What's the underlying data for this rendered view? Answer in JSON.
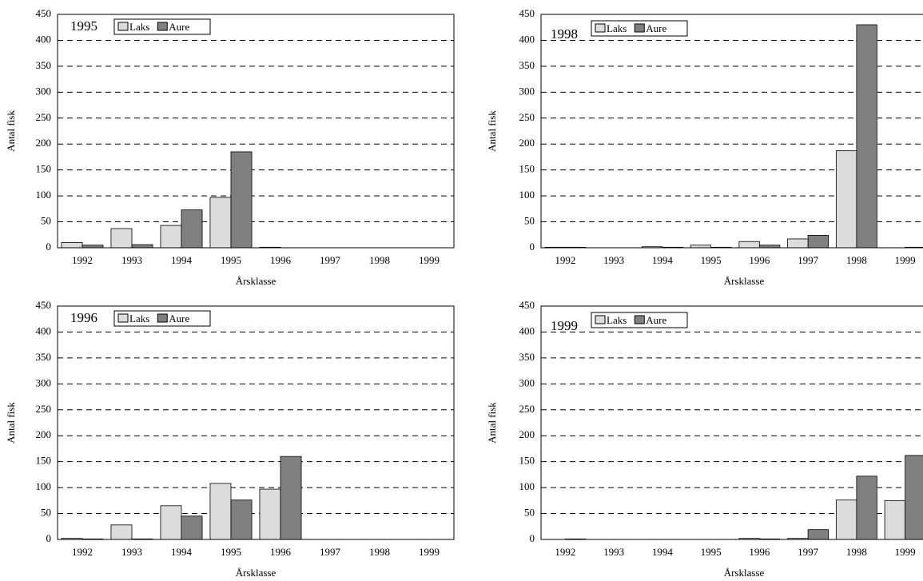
{
  "chart_data": [
    {
      "type": "bar",
      "annotation": "1995",
      "x_label": "Årsklasse",
      "y_label": "Antal fisk",
      "categories": [
        "1992",
        "1993",
        "1994",
        "1995",
        "1996",
        "1997",
        "1998",
        "1999"
      ],
      "series": [
        {
          "name": "Laks",
          "color": "#dcdcdc",
          "values": [
            10,
            37,
            43,
            97,
            1,
            0,
            0,
            0
          ]
        },
        {
          "name": "Aure",
          "color": "#808080",
          "values": [
            5,
            6,
            73,
            185,
            0,
            0,
            0,
            0
          ]
        }
      ],
      "ylim": [
        0,
        450
      ],
      "yticks": [
        0,
        50,
        100,
        150,
        200,
        250,
        300,
        350,
        400,
        450
      ],
      "grid": true,
      "legend": "top-left"
    },
    {
      "type": "bar",
      "annotation": "1998",
      "x_label": "Årsklasse",
      "y_label": "Antal fisk",
      "categories": [
        "1992",
        "1993",
        "1994",
        "1995",
        "1996",
        "1997",
        "1998",
        "1999"
      ],
      "series": [
        {
          "name": "Laks",
          "color": "#dcdcdc",
          "values": [
            1,
            0,
            2,
            5,
            12,
            17,
            187,
            0
          ]
        },
        {
          "name": "Aure",
          "color": "#808080",
          "values": [
            1,
            0,
            1,
            1,
            5,
            24,
            430,
            1
          ]
        }
      ],
      "ylim": [
        0,
        450
      ],
      "yticks": [
        0,
        50,
        100,
        150,
        200,
        250,
        300,
        350,
        400,
        450
      ],
      "grid": true,
      "legend": "top-left"
    },
    {
      "type": "bar",
      "annotation": "1996",
      "x_label": "Årsklasse",
      "y_label": "Antal fisk",
      "categories": [
        "1992",
        "1993",
        "1994",
        "1995",
        "1996",
        "1997",
        "1998",
        "1999"
      ],
      "series": [
        {
          "name": "Laks",
          "color": "#dcdcdc",
          "values": [
            2,
            28,
            65,
            108,
            97,
            0,
            0,
            0
          ]
        },
        {
          "name": "Aure",
          "color": "#808080",
          "values": [
            1,
            1,
            45,
            76,
            160,
            0,
            0,
            0
          ]
        }
      ],
      "ylim": [
        0,
        450
      ],
      "yticks": [
        0,
        50,
        100,
        150,
        200,
        250,
        300,
        350,
        400,
        450
      ],
      "grid": true,
      "legend": "top-left"
    },
    {
      "type": "bar",
      "annotation": "1999",
      "x_label": "Årsklasse",
      "y_label": "Antal fisk",
      "categories": [
        "1992",
        "1993",
        "1994",
        "1995",
        "1996",
        "1997",
        "1998",
        "1999"
      ],
      "series": [
        {
          "name": "Laks",
          "color": "#dcdcdc",
          "values": [
            0,
            0,
            0,
            0,
            2,
            2,
            76,
            75
          ]
        },
        {
          "name": "Aure",
          "color": "#808080",
          "values": [
            1,
            0,
            0,
            0,
            1,
            19,
            122,
            162
          ]
        }
      ],
      "ylim": [
        0,
        450
      ],
      "yticks": [
        0,
        50,
        100,
        150,
        200,
        250,
        300,
        350,
        400,
        450
      ],
      "grid": true,
      "legend": "top-left"
    }
  ]
}
